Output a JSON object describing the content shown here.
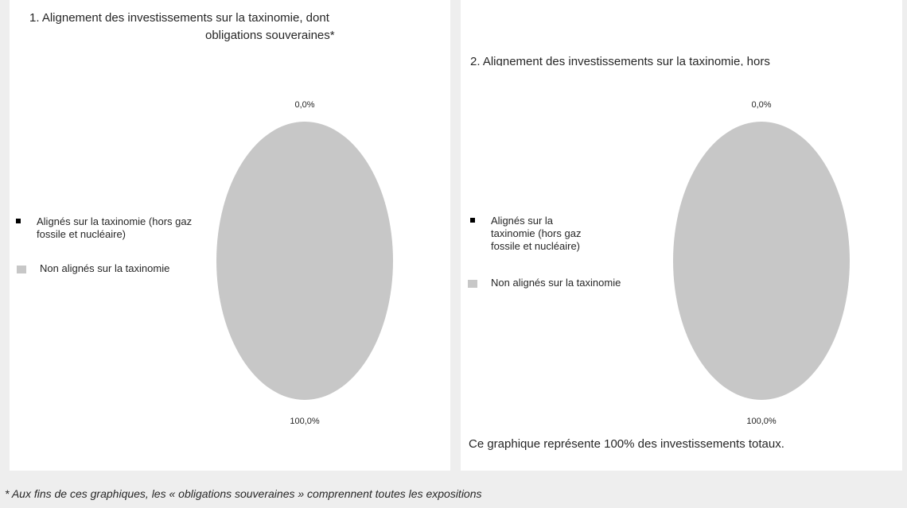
{
  "colors": {
    "aligned": "#000000",
    "non_aligned": "#c7c7c7"
  },
  "chart_data": [
    {
      "type": "pie",
      "title": "1. Alignement des investissements sur la taxinomie, dont obligations souveraines*",
      "title_lines": [
        "1. Alignement des investissements sur la taxinomie, dont",
        "obligations souveraines*"
      ],
      "categories": [
        "Alignés sur la taxinomie (hors gaz fossile et nucléaire)",
        "Non alignés sur la taxinomie"
      ],
      "values": [
        0.0,
        100.0
      ],
      "data_labels": [
        "0,0%",
        "100,0%"
      ],
      "legend_position": "left"
    },
    {
      "type": "pie",
      "title": "2. Alignement des investissements sur la taxinomie, hors",
      "categories": [
        "Alignés sur la taxinomie (hors gaz fossile et nucléaire)",
        "Non alignés sur la taxinomie"
      ],
      "values": [
        0.0,
        100.0
      ],
      "data_labels": [
        "0,0%",
        "100,0%"
      ],
      "legend_position": "left",
      "note": "Ce graphique représente 100% des investissements totaux."
    }
  ],
  "footnote": "* Aux fins de ces graphiques, les « obligations souveraines » comprennent toutes les expositions"
}
